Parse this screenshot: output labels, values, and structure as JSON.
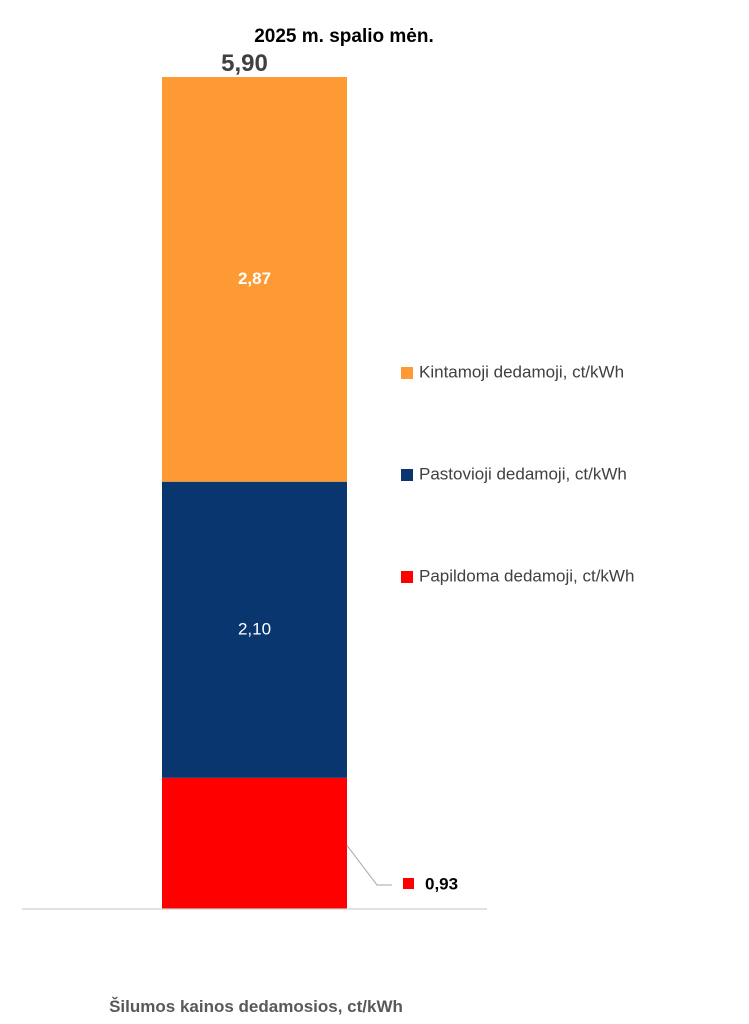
{
  "chart_data": {
    "type": "bar",
    "stacked": true,
    "title": "2025 m.  spalio mėn.",
    "categories": [
      "Šilumos kainos dedamosios, ct/kWh"
    ],
    "total_label": "5,90",
    "ylim": [
      0,
      5.9
    ],
    "series": [
      {
        "name": "Papildoma dedamoji, ct/kWh",
        "values": [
          0.93
        ],
        "label": "0,93",
        "color": "#ff0000",
        "label_position": "outside-right"
      },
      {
        "name": "Pastovioji dedamoji, ct/kWh",
        "values": [
          2.1
        ],
        "label": "2,10",
        "color": "#0a3670",
        "label_position": "center"
      },
      {
        "name": "Kintamoji dedamoji, ct/kWh",
        "values": [
          2.87
        ],
        "label": "2,87",
        "color": "#fd9a34",
        "label_position": "center",
        "label_bold": true
      }
    ],
    "legend": {
      "placement": "right",
      "order": [
        "Kintamoji dedamoji, ct/kWh",
        "Pastovioji dedamoji, ct/kWh",
        "Papildoma dedamoji, ct/kWh"
      ]
    },
    "grid": false
  }
}
